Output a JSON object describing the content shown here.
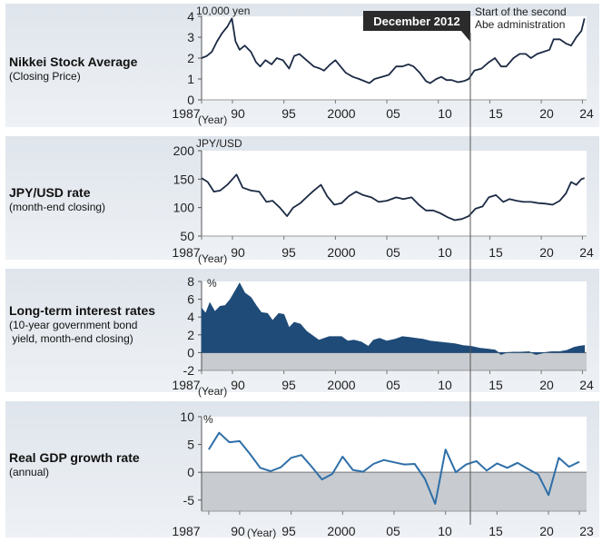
{
  "annotation": {
    "label": "December 2012",
    "note_line1": "Start of the second",
    "note_line2": "Abe administration"
  },
  "chart_data": [
    {
      "type": "line",
      "title": "Nikkei Stock Average",
      "subtitle": "(Closing Price)",
      "unit": "10,000 yen",
      "year_label": "(Year)",
      "ylim": [
        0,
        4
      ],
      "yticks": [
        "0",
        "1",
        "2",
        "3",
        "4"
      ],
      "xticks": [
        "1987",
        "90",
        "95",
        "2000",
        "05",
        "10",
        "15",
        "20",
        "24"
      ],
      "x": [
        1987.0,
        1987.5,
        1988.0,
        1988.5,
        1989.0,
        1989.5,
        1989.95,
        1990.3,
        1990.7,
        1991.2,
        1991.8,
        1992.3,
        1992.7,
        1993.2,
        1993.8,
        1994.3,
        1994.9,
        1995.5,
        1996.0,
        1996.5,
        1997.2,
        1997.9,
        1998.5,
        1998.9,
        1999.5,
        2000.0,
        2000.5,
        2001.0,
        2001.7,
        2002.3,
        2003.3,
        2003.8,
        2004.5,
        2005.2,
        2005.9,
        2006.5,
        2007.1,
        2007.6,
        2008.2,
        2008.8,
        2009.2,
        2009.8,
        2010.3,
        2010.8,
        2011.3,
        2011.9,
        2012.5,
        2012.95,
        2013.5,
        2014.2,
        2014.9,
        2015.5,
        2016.1,
        2016.6,
        2017.3,
        2017.9,
        2018.5,
        2018.99,
        2019.6,
        2020.2,
        2020.8,
        2021.2,
        2021.8,
        2022.4,
        2022.9,
        2023.4,
        2023.9,
        2024.2
      ],
      "values": [
        2.0,
        2.1,
        2.3,
        2.8,
        3.2,
        3.5,
        3.9,
        2.8,
        2.4,
        2.6,
        2.3,
        1.8,
        1.6,
        1.9,
        1.7,
        2.0,
        1.9,
        1.5,
        2.1,
        2.2,
        1.9,
        1.6,
        1.5,
        1.4,
        1.7,
        1.9,
        1.6,
        1.3,
        1.1,
        1.0,
        0.8,
        1.0,
        1.1,
        1.2,
        1.6,
        1.6,
        1.7,
        1.6,
        1.3,
        0.9,
        0.8,
        1.0,
        1.1,
        0.95,
        0.95,
        0.85,
        0.9,
        1.0,
        1.4,
        1.5,
        1.8,
        2.0,
        1.6,
        1.6,
        2.0,
        2.2,
        2.2,
        2.0,
        2.2,
        2.3,
        2.4,
        2.9,
        2.9,
        2.7,
        2.6,
        3.0,
        3.3,
        3.9
      ]
    },
    {
      "type": "line",
      "title": "JPY/USD rate",
      "subtitle": "(month-end closing)",
      "unit": "JPY/USD",
      "year_label": "(Year)",
      "ylim": [
        50,
        200
      ],
      "yticks": [
        "50",
        "100",
        "150",
        "200"
      ],
      "xticks": [
        "1987",
        "90",
        "95",
        "2000",
        "05",
        "10",
        "15",
        "20",
        "24"
      ],
      "x": [
        1987.0,
        1987.6,
        1988.2,
        1988.8,
        1989.5,
        1990.0,
        1990.4,
        1991.0,
        1991.8,
        1992.6,
        1993.3,
        1993.9,
        1994.6,
        1995.3,
        1995.9,
        1996.6,
        1997.3,
        1997.9,
        1998.6,
        1999.2,
        1999.9,
        2000.6,
        2001.3,
        2002.0,
        2002.7,
        2003.5,
        2004.2,
        2005.0,
        2005.9,
        2006.6,
        2007.4,
        2008.1,
        2008.8,
        2009.5,
        2010.2,
        2010.9,
        2011.6,
        2012.3,
        2012.95,
        2013.6,
        2014.3,
        2014.9,
        2015.6,
        2016.3,
        2016.9,
        2017.6,
        2018.3,
        2019.0,
        2019.7,
        2020.4,
        2021.1,
        2021.8,
        2022.4,
        2022.9,
        2023.4,
        2023.9,
        2024.2
      ],
      "values": [
        152,
        145,
        128,
        130,
        140,
        150,
        158,
        135,
        130,
        128,
        110,
        112,
        100,
        85,
        100,
        108,
        120,
        130,
        140,
        120,
        105,
        108,
        120,
        128,
        122,
        118,
        110,
        112,
        118,
        115,
        118,
        105,
        95,
        95,
        90,
        83,
        78,
        80,
        85,
        98,
        102,
        118,
        122,
        110,
        115,
        112,
        110,
        110,
        108,
        107,
        105,
        112,
        125,
        145,
        140,
        150,
        152
      ]
    },
    {
      "type": "area",
      "title": "Long-term interest rates",
      "subtitle_lines": [
        "(10-year government bond",
        " yield, month-end closing)"
      ],
      "unit": "%",
      "year_label": "(Year)",
      "ylim": [
        -2,
        8
      ],
      "yticks": [
        "-2",
        "0",
        "2",
        "4",
        "6",
        "8"
      ],
      "xticks": [
        "1987",
        "90",
        "95",
        "2000",
        "05",
        "10",
        "15",
        "20",
        "24"
      ],
      "x": [
        1987.0,
        1987.4,
        1987.8,
        1988.3,
        1988.8,
        1989.3,
        1989.8,
        1990.3,
        1990.7,
        1991.2,
        1991.8,
        1992.3,
        1992.8,
        1993.4,
        1993.9,
        1994.5,
        1995.0,
        1995.5,
        1996.0,
        1996.6,
        1997.2,
        1997.8,
        1998.4,
        1998.9,
        1999.4,
        2000.0,
        2000.6,
        2001.2,
        2001.8,
        2002.5,
        2003.2,
        2003.7,
        2004.3,
        2005.0,
        2005.8,
        2006.5,
        2007.2,
        2007.8,
        2008.5,
        2009.2,
        2010.0,
        2010.8,
        2011.6,
        2012.4,
        2013.2,
        2014.0,
        2014.8,
        2015.5,
        2016.1,
        2016.6,
        2017.3,
        2018.0,
        2018.8,
        2019.5,
        2020.3,
        2021.0,
        2021.8,
        2022.5,
        2023.2,
        2023.8,
        2024.2
      ],
      "values": [
        5.0,
        4.4,
        5.6,
        4.6,
        5.2,
        5.3,
        6.0,
        7.0,
        7.8,
        6.7,
        6.2,
        5.3,
        4.5,
        4.4,
        3.6,
        4.4,
        4.3,
        2.8,
        3.4,
        3.2,
        2.4,
        1.9,
        1.4,
        1.6,
        1.8,
        1.8,
        1.8,
        1.3,
        1.4,
        1.2,
        0.7,
        1.4,
        1.6,
        1.3,
        1.5,
        1.8,
        1.7,
        1.6,
        1.5,
        1.3,
        1.2,
        1.1,
        1.0,
        0.8,
        0.7,
        0.5,
        0.4,
        0.3,
        -0.2,
        0.0,
        0.05,
        0.05,
        0.1,
        -0.2,
        0.0,
        0.1,
        0.1,
        0.25,
        0.6,
        0.75,
        0.8
      ]
    },
    {
      "type": "line",
      "title": "Real GDP growth rate",
      "subtitle": "(annual)",
      "unit": "%",
      "year_label": "(Year)",
      "ylim": [
        -7,
        10
      ],
      "yticks": [
        "-5",
        "0",
        "5",
        "10"
      ],
      "xticks": [
        "1987",
        "90",
        "95",
        "2000",
        "05",
        "10",
        "15",
        "20",
        "23"
      ],
      "x": [
        1987,
        1988,
        1989,
        1990,
        1991,
        1992,
        1993,
        1994,
        1995,
        1996,
        1997,
        1998,
        1999,
        2000,
        2001,
        2002,
        2003,
        2004,
        2005,
        2006,
        2007,
        2008,
        2009,
        2010,
        2011,
        2012,
        2013,
        2014,
        2015,
        2016,
        2017,
        2018,
        2019,
        2020,
        2021,
        2022,
        2023
      ],
      "values": [
        4.1,
        7.1,
        5.4,
        5.6,
        3.3,
        0.8,
        0.2,
        0.9,
        2.6,
        3.1,
        1.0,
        -1.3,
        -0.3,
        2.8,
        0.4,
        0.1,
        1.5,
        2.2,
        1.8,
        1.4,
        1.5,
        -1.2,
        -5.7,
        4.1,
        0.0,
        1.4,
        2.0,
        0.3,
        1.6,
        0.8,
        1.7,
        0.6,
        -0.4,
        -4.1,
        2.6,
        1.0,
        1.9
      ]
    }
  ]
}
